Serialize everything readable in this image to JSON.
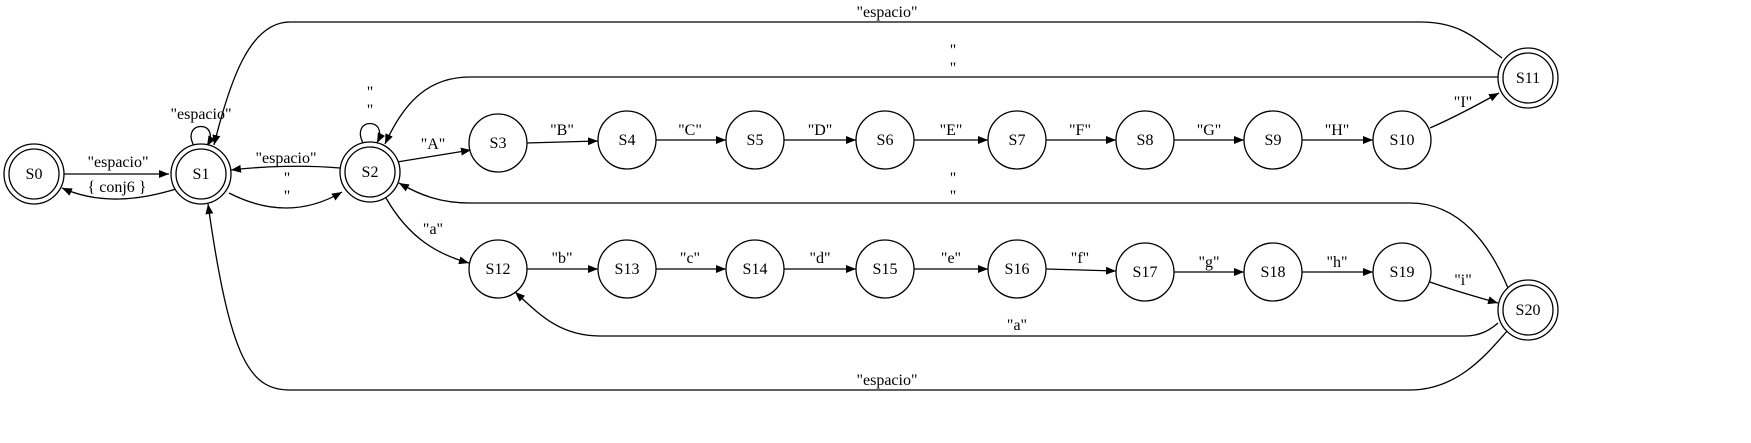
{
  "diagram": {
    "nodes": [
      {
        "id": "S0",
        "label": "S0",
        "accepting": true
      },
      {
        "id": "S1",
        "label": "S1",
        "accepting": true
      },
      {
        "id": "S2",
        "label": "S2",
        "accepting": true
      },
      {
        "id": "S3",
        "label": "S3",
        "accepting": false
      },
      {
        "id": "S4",
        "label": "S4",
        "accepting": false
      },
      {
        "id": "S5",
        "label": "S5",
        "accepting": false
      },
      {
        "id": "S6",
        "label": "S6",
        "accepting": false
      },
      {
        "id": "S7",
        "label": "S7",
        "accepting": false
      },
      {
        "id": "S8",
        "label": "S8",
        "accepting": false
      },
      {
        "id": "S9",
        "label": "S9",
        "accepting": false
      },
      {
        "id": "S10",
        "label": "S10",
        "accepting": false
      },
      {
        "id": "S11",
        "label": "S11",
        "accepting": true
      },
      {
        "id": "S12",
        "label": "S12",
        "accepting": false
      },
      {
        "id": "S13",
        "label": "S13",
        "accepting": false
      },
      {
        "id": "S14",
        "label": "S14",
        "accepting": false
      },
      {
        "id": "S15",
        "label": "S15",
        "accepting": false
      },
      {
        "id": "S16",
        "label": "S16",
        "accepting": false
      },
      {
        "id": "S17",
        "label": "S17",
        "accepting": false
      },
      {
        "id": "S18",
        "label": "S18",
        "accepting": false
      },
      {
        "id": "S19",
        "label": "S19",
        "accepting": false
      },
      {
        "id": "S20",
        "label": "S20",
        "accepting": true
      }
    ],
    "edges": [
      {
        "from": "S0",
        "to": "S1",
        "label": "\"espacio\""
      },
      {
        "from": "S1",
        "to": "S0",
        "label": "{ conj6 }"
      },
      {
        "from": "S1",
        "to": "S1",
        "label": "\"espacio\""
      },
      {
        "from": "S1",
        "to": "S2",
        "label": "\"\n\""
      },
      {
        "from": "S2",
        "to": "S1",
        "label": "\"espacio\""
      },
      {
        "from": "S2",
        "to": "S2",
        "label": "\"\n\""
      },
      {
        "from": "S2",
        "to": "S3",
        "label": "\"A\""
      },
      {
        "from": "S3",
        "to": "S4",
        "label": "\"B\""
      },
      {
        "from": "S4",
        "to": "S5",
        "label": "\"C\""
      },
      {
        "from": "S5",
        "to": "S6",
        "label": "\"D\""
      },
      {
        "from": "S6",
        "to": "S7",
        "label": "\"E\""
      },
      {
        "from": "S7",
        "to": "S8",
        "label": "\"F\""
      },
      {
        "from": "S8",
        "to": "S9",
        "label": "\"G\""
      },
      {
        "from": "S9",
        "to": "S10",
        "label": "\"H\""
      },
      {
        "from": "S10",
        "to": "S11",
        "label": "\"I\""
      },
      {
        "from": "S11",
        "to": "S1",
        "label": "\"espacio\""
      },
      {
        "from": "S11",
        "to": "S2",
        "label": "\"\n\""
      },
      {
        "from": "S2",
        "to": "S12",
        "label": "\"a\""
      },
      {
        "from": "S12",
        "to": "S13",
        "label": "\"b\""
      },
      {
        "from": "S13",
        "to": "S14",
        "label": "\"c\""
      },
      {
        "from": "S14",
        "to": "S15",
        "label": "\"d\""
      },
      {
        "from": "S15",
        "to": "S16",
        "label": "\"e\""
      },
      {
        "from": "S16",
        "to": "S17",
        "label": "\"f\""
      },
      {
        "from": "S17",
        "to": "S18",
        "label": "\"g\""
      },
      {
        "from": "S18",
        "to": "S19",
        "label": "\"h\""
      },
      {
        "from": "S19",
        "to": "S20",
        "label": "\"i\""
      },
      {
        "from": "S20",
        "to": "S2",
        "label": "\"\n\""
      },
      {
        "from": "S20",
        "to": "S12",
        "label": "\"a\""
      },
      {
        "from": "S20",
        "to": "S1",
        "label": "\"espacio\""
      }
    ]
  }
}
